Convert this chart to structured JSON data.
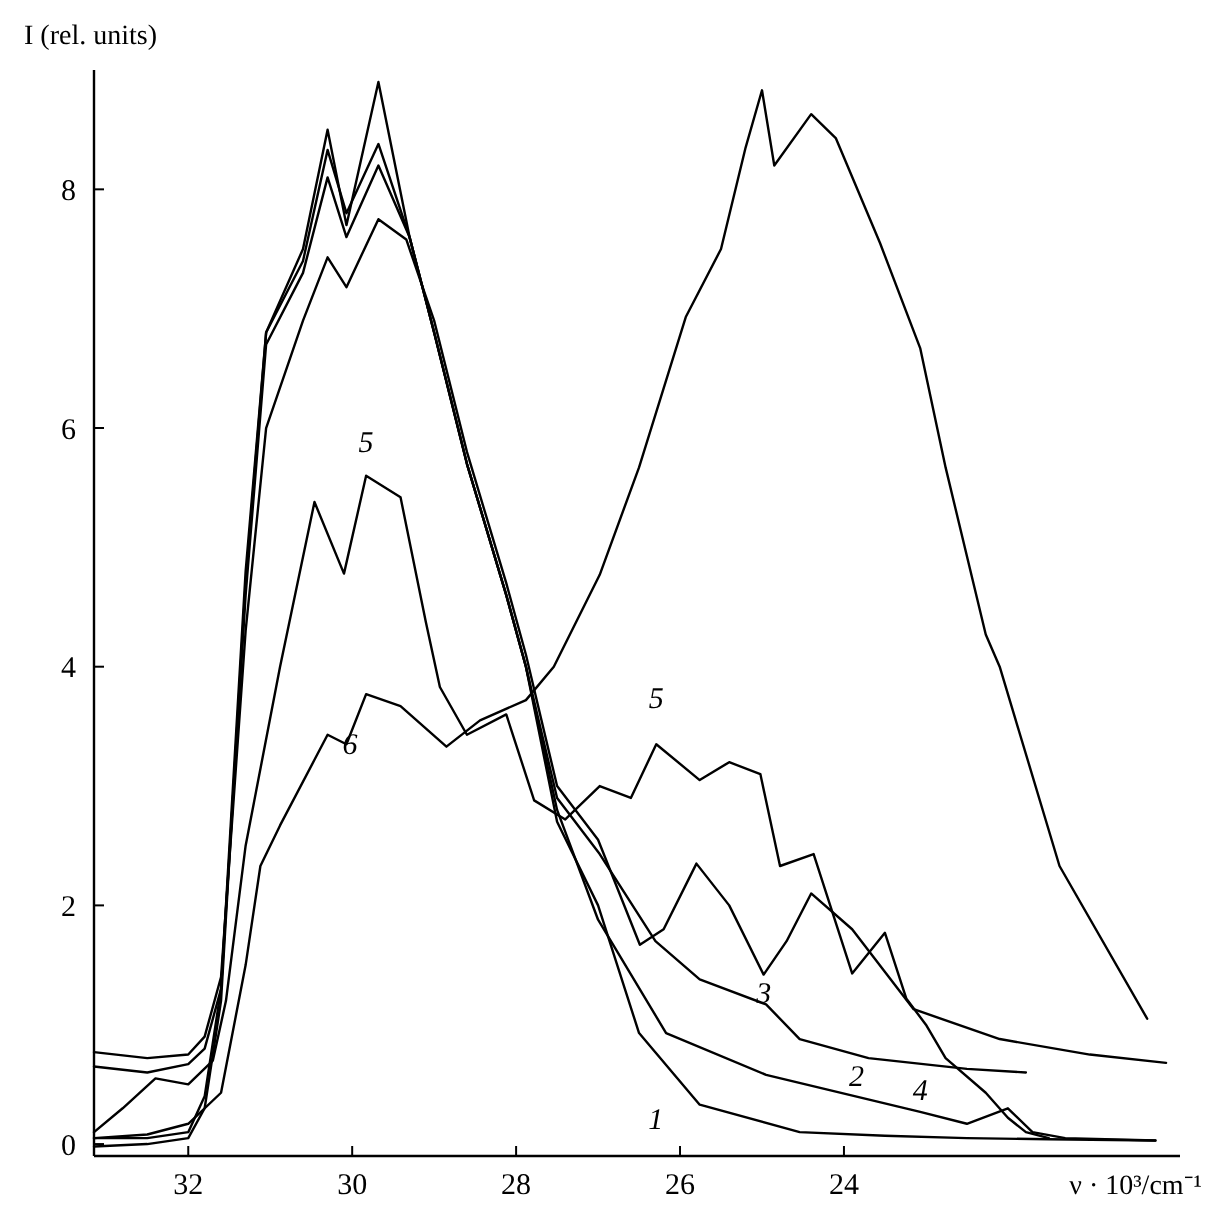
{
  "chart_data": {
    "type": "line",
    "xlabel": "ν · 10³/cm⁻¹",
    "ylabel": "I (rel. units)",
    "xlim": [
      33.15,
      19.9
    ],
    "ylim": [
      -0.1,
      9
    ],
    "xticks": [
      32,
      30,
      28,
      26,
      24
    ],
    "yticks": [
      0,
      2,
      4,
      6,
      8
    ],
    "grid": false,
    "legend": false,
    "marker": "none",
    "line_style": "solid",
    "series": [
      {
        "name": "1",
        "color": "#000000",
        "x": [
          33.15,
          32.5,
          32.0,
          31.8,
          31.6,
          31.3,
          31.05,
          30.6,
          30.3,
          30.07,
          29.68,
          29.3,
          29.0,
          28.6,
          28.12,
          27.88,
          27.5,
          27.0,
          26.5,
          25.76,
          24.54,
          23.5,
          22.5,
          21.5,
          20.2
        ],
        "values": [
          0.05,
          0.05,
          0.1,
          0.4,
          1.3,
          4.8,
          6.8,
          7.5,
          8.5,
          7.7,
          8.9,
          7.6,
          6.8,
          5.7,
          4.6,
          4.0,
          2.7,
          2.0,
          0.93,
          0.33,
          0.1,
          0.07,
          0.05,
          0.04,
          0.03
        ]
      },
      {
        "name": "2",
        "color": "#000000",
        "x": [
          33.15,
          32.5,
          32.0,
          31.8,
          31.6,
          31.3,
          31.05,
          30.6,
          30.3,
          30.07,
          29.68,
          29.3,
          29.0,
          28.6,
          28.12,
          27.88,
          27.5,
          26.98,
          26.3,
          25.76,
          24.95,
          24.54,
          23.7,
          22.5,
          21.78
        ],
        "values": [
          0.65,
          0.6,
          0.67,
          0.8,
          1.3,
          4.6,
          6.7,
          7.3,
          8.1,
          7.6,
          8.2,
          7.6,
          6.8,
          5.7,
          4.6,
          4.0,
          2.9,
          2.43,
          1.7,
          1.38,
          1.17,
          0.88,
          0.72,
          0.63,
          0.6
        ]
      },
      {
        "name": "3",
        "color": "#000000",
        "x": [
          33.15,
          32.5,
          32.0,
          31.8,
          31.6,
          31.3,
          31.05,
          30.6,
          30.3,
          30.07,
          29.68,
          29.34,
          29.0,
          28.6,
          28.12,
          27.88,
          27.5,
          27.0,
          26.49,
          26.2,
          25.8,
          25.4,
          24.98,
          24.7,
          24.4,
          23.9,
          23.15,
          22.1,
          21.0,
          20.07
        ],
        "values": [
          0.77,
          0.72,
          0.75,
          0.9,
          1.4,
          4.3,
          6.0,
          6.9,
          7.43,
          7.18,
          7.75,
          7.58,
          6.9,
          5.8,
          4.7,
          4.1,
          3.0,
          2.55,
          1.67,
          1.8,
          2.35,
          2.0,
          1.42,
          1.7,
          2.1,
          1.8,
          1.13,
          0.88,
          0.75,
          0.68
        ]
      },
      {
        "name": "4",
        "color": "#000000",
        "x": [
          33.15,
          32.5,
          32.0,
          31.8,
          31.6,
          31.3,
          31.05,
          30.6,
          30.3,
          30.07,
          29.68,
          29.3,
          29.0,
          28.6,
          28.12,
          27.88,
          27.5,
          27.0,
          26.17,
          24.95,
          23.07,
          22.5,
          22.0,
          21.7,
          21.3,
          20.2
        ],
        "values": [
          -0.02,
          0,
          0.05,
          0.3,
          1.2,
          4.7,
          6.8,
          7.4,
          8.33,
          7.8,
          8.38,
          7.6,
          6.8,
          5.7,
          4.6,
          4.0,
          2.8,
          1.88,
          0.93,
          0.58,
          0.27,
          0.17,
          0.3,
          0.1,
          0.05,
          0.03
        ]
      },
      {
        "name": "5",
        "color": "#000000",
        "x": [
          33.15,
          32.8,
          32.4,
          32.0,
          31.7,
          31.54,
          31.3,
          30.88,
          30.46,
          30.1,
          29.83,
          29.41,
          29.1,
          28.93,
          28.6,
          28.12,
          27.78,
          27.4,
          26.98,
          26.6,
          26.29,
          25.76,
          25.4,
          25.02,
          24.78,
          24.37,
          23.9,
          23.5,
          23.24,
          23.0,
          22.76,
          22.27,
          22.0,
          21.78,
          21.5
        ],
        "values": [
          0.1,
          0.3,
          0.55,
          0.5,
          0.7,
          1.2,
          2.5,
          4.0,
          5.38,
          4.78,
          5.6,
          5.42,
          4.37,
          3.83,
          3.43,
          3.6,
          2.88,
          2.72,
          3.0,
          2.9,
          3.35,
          3.05,
          3.2,
          3.1,
          2.33,
          2.43,
          1.43,
          1.77,
          1.22,
          1.0,
          0.72,
          0.43,
          0.22,
          0.1,
          0.05
        ]
      },
      {
        "name": "6",
        "color": "#000000",
        "x": [
          33.15,
          32.5,
          32.0,
          31.6,
          31.3,
          31.12,
          30.88,
          30.46,
          30.3,
          30.07,
          29.83,
          29.41,
          28.85,
          28.44,
          27.88,
          27.54,
          26.98,
          26.5,
          25.93,
          25.5,
          25.2,
          25.0,
          24.85,
          24.4,
          24.1,
          23.56,
          23.07,
          22.76,
          22.27,
          22.1,
          21.37,
          20.3
        ],
        "values": [
          0.05,
          0.08,
          0.17,
          0.43,
          1.5,
          2.33,
          2.67,
          3.22,
          3.43,
          3.35,
          3.77,
          3.67,
          3.33,
          3.55,
          3.72,
          4.0,
          4.77,
          5.67,
          6.93,
          7.5,
          8.35,
          8.83,
          8.2,
          8.63,
          8.43,
          7.55,
          6.67,
          5.67,
          4.27,
          4.0,
          2.33,
          1.05
        ]
      }
    ]
  }
}
